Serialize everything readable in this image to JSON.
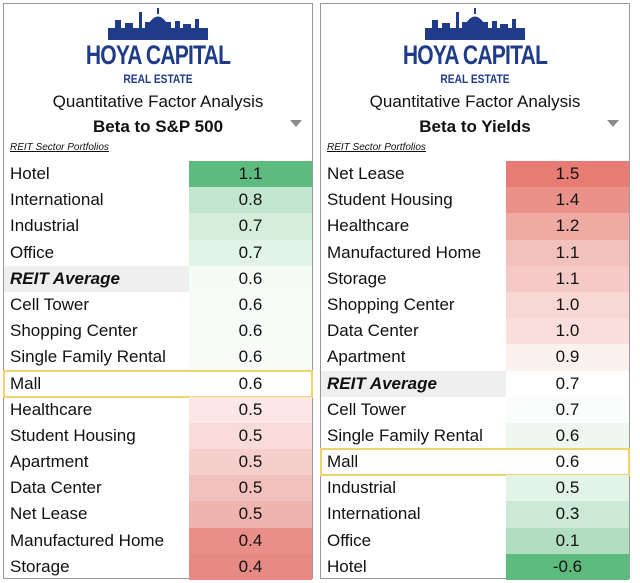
{
  "colors": {
    "brand": "#1f3b8a",
    "highlight_outline": "#f2d26a",
    "green_strong": "#5ebb7f",
    "red_strong": "#e67c73"
  },
  "panels": [
    {
      "logo": {
        "title": "HOYA CAPITAL",
        "subtitle": "REAL ESTATE"
      },
      "heading": "Quantitative Factor Analysis",
      "metric": "Beta to S&P 500",
      "section_label": "REIT Sector Portfolios",
      "rows": [
        {
          "name": "Hotel",
          "value": "1.1",
          "color": "#5ebb7f"
        },
        {
          "name": "International",
          "value": "0.8",
          "color": "#c3e6cf"
        },
        {
          "name": "Industrial",
          "value": "0.7",
          "color": "#d5eedc"
        },
        {
          "name": "Office",
          "value": "0.7",
          "color": "#e2f3e7"
        },
        {
          "name": "REIT Average",
          "value": "0.6",
          "color": "#f5fbf6",
          "type": "average"
        },
        {
          "name": "Cell Tower",
          "value": "0.6",
          "color": "#f7fcf8"
        },
        {
          "name": "Shopping Center",
          "value": "0.6",
          "color": "#f7fcf8"
        },
        {
          "name": "Single Family Rental",
          "value": "0.6",
          "color": "#f7fcf8"
        },
        {
          "name": "Mall",
          "value": "0.6",
          "color": "#ffffff",
          "type": "highlight"
        },
        {
          "name": "Healthcare",
          "value": "0.5",
          "color": "#fbe7e6"
        },
        {
          "name": "Student Housing",
          "value": "0.5",
          "color": "#f9dcda"
        },
        {
          "name": "Apartment",
          "value": "0.5",
          "color": "#f6cfcc"
        },
        {
          "name": "Data Center",
          "value": "0.5",
          "color": "#f3c1bd"
        },
        {
          "name": "Net Lease",
          "value": "0.5",
          "color": "#f0b4af"
        },
        {
          "name": "Manufactured Home",
          "value": "0.4",
          "color": "#ea8f88"
        },
        {
          "name": "Storage",
          "value": "0.4",
          "color": "#e88a83"
        }
      ]
    },
    {
      "logo": {
        "title": "HOYA CAPITAL",
        "subtitle": "REAL ESTATE"
      },
      "heading": "Quantitative Factor Analysis",
      "metric": "Beta to Yields",
      "section_label": "REIT Sector Portfolios",
      "rows": [
        {
          "name": "Net Lease",
          "value": "1.5",
          "color": "#e67c73"
        },
        {
          "name": "Student Housing",
          "value": "1.4",
          "color": "#ea9189"
        },
        {
          "name": "Healthcare",
          "value": "1.2",
          "color": "#efaaa4"
        },
        {
          "name": "Manufactured Home",
          "value": "1.1",
          "color": "#f3c1bc"
        },
        {
          "name": "Storage",
          "value": "1.1",
          "color": "#f5c9c5"
        },
        {
          "name": "Shopping Center",
          "value": "1.0",
          "color": "#f8d8d5"
        },
        {
          "name": "Data Center",
          "value": "1.0",
          "color": "#f9dedb"
        },
        {
          "name": "Apartment",
          "value": "0.9",
          "color": "#fdf1f0"
        },
        {
          "name": "REIT Average",
          "value": "0.7",
          "color": "#fefefe",
          "type": "average"
        },
        {
          "name": "Cell Tower",
          "value": "0.7",
          "color": "#fafdfb"
        },
        {
          "name": "Single Family Rental",
          "value": "0.6",
          "color": "#eef8f1"
        },
        {
          "name": "Mall",
          "value": "0.6",
          "color": "#ffffff",
          "type": "highlight"
        },
        {
          "name": "Industrial",
          "value": "0.5",
          "color": "#e2f3e7"
        },
        {
          "name": "International",
          "value": "0.3",
          "color": "#cbe9d5"
        },
        {
          "name": "Office",
          "value": "0.1",
          "color": "#b1dec0"
        },
        {
          "name": "Hotel",
          "value": "-0.6",
          "color": "#5ebb7f"
        }
      ]
    }
  ]
}
